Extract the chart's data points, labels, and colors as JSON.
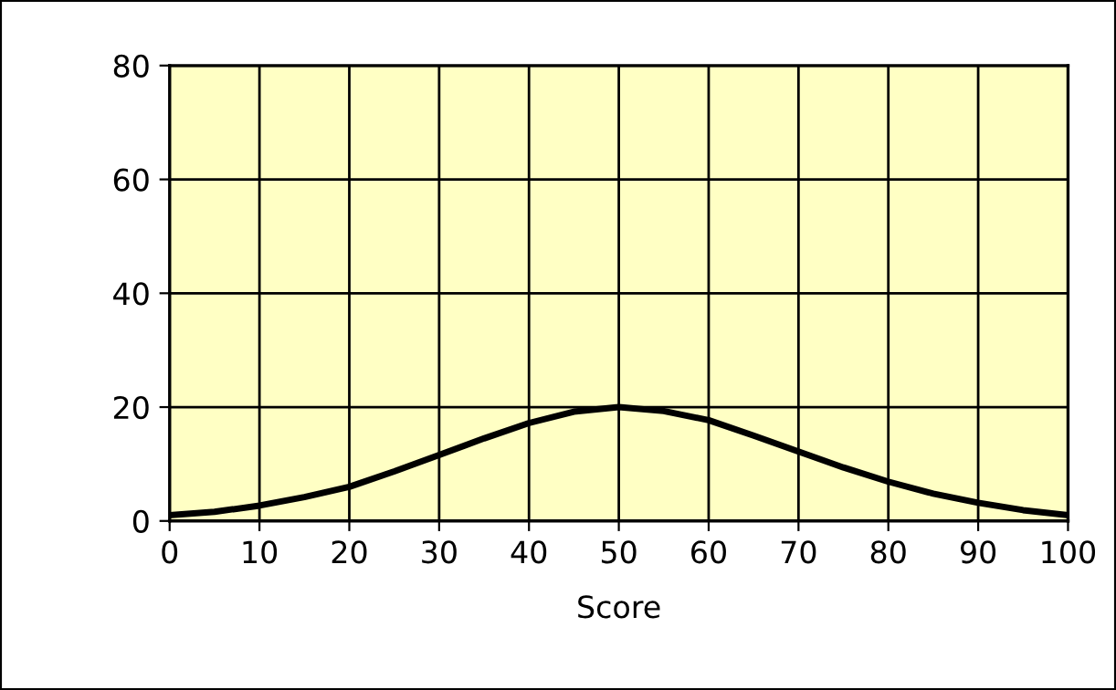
{
  "chart_data": {
    "type": "line",
    "xlabel": "Score",
    "x": [
      0,
      5,
      10,
      15,
      20,
      25,
      30,
      35,
      40,
      45,
      50,
      55,
      60,
      65,
      70,
      75,
      80,
      85,
      90,
      95,
      100
    ],
    "series": [
      {
        "color": "#000000",
        "values": [
          1.0,
          1.6,
          2.7,
          4.2,
          6.0,
          8.7,
          11.6,
          14.5,
          17.2,
          19.2,
          20,
          19.3,
          17.7,
          15,
          12.2,
          9.4,
          6.9,
          4.8,
          3.2,
          1.9,
          1.0
        ]
      }
    ],
    "xlim": [
      0,
      100
    ],
    "ylim": [
      0,
      80
    ],
    "xticks": [
      0,
      10,
      20,
      30,
      40,
      50,
      60,
      70,
      80,
      90,
      100
    ],
    "yticks": [
      0,
      20,
      40,
      60,
      80
    ],
    "grid": true,
    "legend": false,
    "marker": "none",
    "line_style": "solid"
  }
}
